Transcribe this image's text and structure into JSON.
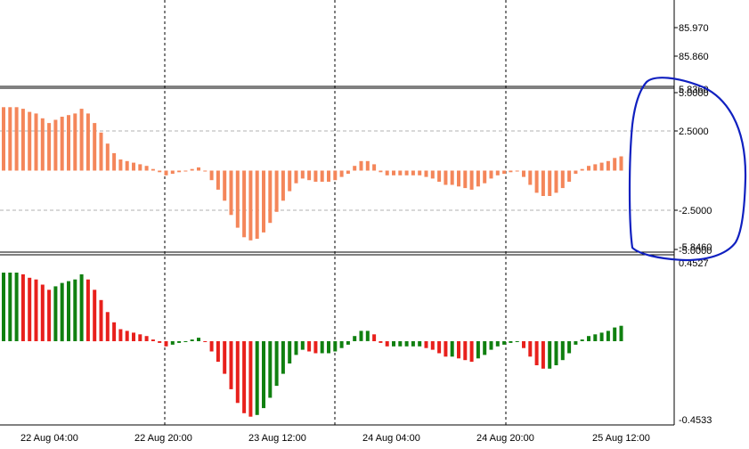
{
  "chart_data": [
    {
      "type": "line",
      "name_panel": "price",
      "y_tick_labels": [
        "85.970",
        "85.860"
      ],
      "ylim": [
        85.8,
        86.0
      ]
    },
    {
      "type": "bar",
      "name_panel": "histogram-orange",
      "color": "#f4865a",
      "y_tick_labels": [
        "5.0000",
        "2.5000",
        "-2.5000",
        "-5.0000"
      ],
      "y_extra_labels": [
        "5.8360",
        "-5.8460"
      ],
      "ylim": [
        -5.846,
        5.836
      ],
      "values": [
        4.0,
        4.0,
        4.0,
        3.9,
        3.7,
        3.6,
        3.3,
        3.0,
        3.2,
        3.4,
        3.5,
        3.6,
        3.9,
        3.6,
        3.0,
        2.4,
        1.7,
        1.1,
        0.7,
        0.6,
        0.5,
        0.4,
        0.3,
        0.1,
        -0.1,
        -0.3,
        -0.2,
        -0.1,
        0.0,
        0.1,
        0.2,
        0.0,
        -0.6,
        -1.2,
        -1.9,
        -2.8,
        -3.6,
        -4.2,
        -4.4,
        -4.3,
        -3.9,
        -3.3,
        -2.6,
        -1.9,
        -1.3,
        -0.8,
        -0.5,
        -0.6,
        -0.7,
        -0.7,
        -0.7,
        -0.6,
        -0.4,
        -0.2,
        0.3,
        0.6,
        0.6,
        0.4,
        -0.1,
        -0.3,
        -0.3,
        -0.3,
        -0.3,
        -0.3,
        -0.3,
        -0.4,
        -0.5,
        -0.7,
        -0.9,
        -0.9,
        -1.0,
        -1.1,
        -1.2,
        -1.0,
        -0.8,
        -0.5,
        -0.3,
        -0.2,
        -0.1,
        0.0,
        -0.4,
        -0.9,
        -1.4,
        -1.6,
        -1.6,
        -1.4,
        -1.1,
        -0.7,
        -0.2,
        0.1,
        0.3,
        0.4,
        0.5,
        0.6,
        0.8,
        0.9
      ]
    },
    {
      "type": "bar",
      "name_panel": "histogram-green-red",
      "up_color": "#108010",
      "down_color": "#e8201c",
      "y_tick_labels": [
        "0.4527",
        "-0.4533"
      ],
      "ylim": [
        -0.4533,
        0.4527
      ],
      "values": [
        0.4,
        0.4,
        0.4,
        0.39,
        0.37,
        0.36,
        0.33,
        0.3,
        0.32,
        0.34,
        0.35,
        0.36,
        0.39,
        0.36,
        0.3,
        0.24,
        0.17,
        0.11,
        0.07,
        0.06,
        0.05,
        0.04,
        0.03,
        0.01,
        -0.01,
        -0.03,
        -0.02,
        -0.01,
        0.0,
        0.01,
        0.02,
        0.0,
        -0.06,
        -0.12,
        -0.19,
        -0.28,
        -0.36,
        -0.42,
        -0.44,
        -0.43,
        -0.39,
        -0.33,
        -0.26,
        -0.19,
        -0.13,
        -0.08,
        -0.05,
        -0.06,
        -0.07,
        -0.07,
        -0.07,
        -0.06,
        -0.04,
        -0.02,
        0.03,
        0.06,
        0.06,
        0.04,
        -0.01,
        -0.03,
        -0.03,
        -0.03,
        -0.03,
        -0.03,
        -0.03,
        -0.04,
        -0.05,
        -0.07,
        -0.09,
        -0.09,
        -0.1,
        -0.11,
        -0.12,
        -0.1,
        -0.08,
        -0.05,
        -0.03,
        -0.02,
        -0.01,
        0.0,
        -0.04,
        -0.09,
        -0.14,
        -0.16,
        -0.16,
        -0.14,
        -0.11,
        -0.07,
        -0.02,
        0.01,
        0.03,
        0.04,
        0.05,
        0.06,
        0.08,
        0.09
      ]
    }
  ],
  "x_axis": {
    "tick_labels": [
      "22 Aug 04:00",
      "22 Aug 20:00",
      "23 Aug 12:00",
      "24 Aug 04:00",
      "24 Aug 20:00",
      "25 Aug 12:00"
    ]
  },
  "colors": {
    "grid": "#808080",
    "annotation": "#1020c0"
  },
  "annotation": {
    "shape": "hand-drawn ellipse",
    "marks": "latest histogram bars"
  }
}
